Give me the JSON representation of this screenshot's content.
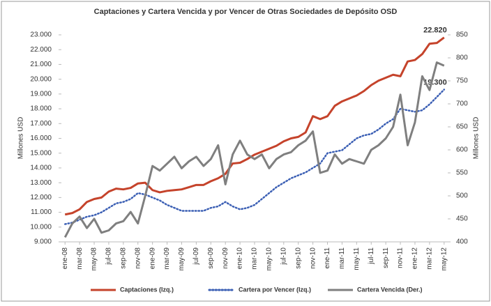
{
  "chart_data": {
    "type": "line",
    "title": "Captaciones y Cartera Vencida y por Vencer de Otras Sociedades de Depósito OSD",
    "ylabel": "Millones USD",
    "y2label": "Millones USD",
    "categories": [
      "ene-08",
      null,
      "mar-08",
      null,
      "may-08",
      null,
      "jul-08",
      null,
      "sep-08",
      null,
      "nov-08",
      null,
      "ene-09",
      null,
      "mar-09",
      null,
      "may-09",
      null,
      "jul-09",
      null,
      "sep-09",
      null,
      "nov-09",
      null,
      "ene-10",
      null,
      "mar-10",
      null,
      "may-10",
      null,
      "jul-10",
      null,
      "sep-10",
      null,
      "nov-10",
      null,
      "ene-11",
      null,
      "mar-11",
      null,
      "may-11",
      null,
      "jul-11",
      null,
      "sep-11",
      null,
      "nov-11",
      null,
      "ene-12",
      null,
      "mar-12",
      null,
      "may-12"
    ],
    "ylim": [
      9000,
      23000
    ],
    "yticks": [
      {
        "value": 9000,
        "label": "9.000"
      },
      {
        "value": 10000,
        "label": "10.000"
      },
      {
        "value": 11000,
        "label": "11.000"
      },
      {
        "value": 12000,
        "label": "12.000"
      },
      {
        "value": 13000,
        "label": "13.000"
      },
      {
        "value": 14000,
        "label": "14.000"
      },
      {
        "value": 15000,
        "label": "15.000"
      },
      {
        "value": 16000,
        "label": "16.000"
      },
      {
        "value": 17000,
        "label": "17.000"
      },
      {
        "value": 18000,
        "label": "18.000"
      },
      {
        "value": 19000,
        "label": "19.000"
      },
      {
        "value": 20000,
        "label": "20.000"
      },
      {
        "value": 21000,
        "label": "21.000"
      },
      {
        "value": 22000,
        "label": "22.000"
      },
      {
        "value": 23000,
        "label": "23.000"
      }
    ],
    "y2lim": [
      400,
      850
    ],
    "y2ticks": [
      400,
      450,
      500,
      550,
      600,
      650,
      700,
      750,
      800,
      850
    ],
    "grid": false,
    "legend": "bottom",
    "series": [
      {
        "name": "Captaciones (Izq.)",
        "color": "#c5432b",
        "style": "solid",
        "values": [
          10850,
          10950,
          11200,
          11700,
          11900,
          12000,
          12400,
          12600,
          12550,
          12650,
          12950,
          13000,
          12500,
          12350,
          12450,
          12500,
          12550,
          12700,
          12850,
          12850,
          13100,
          13300,
          13600,
          14300,
          14350,
          14600,
          14900,
          15100,
          15300,
          15500,
          15800,
          16000,
          16100,
          16400,
          17500,
          17300,
          17500,
          18200,
          18500,
          18700,
          18900,
          19200,
          19600,
          19900,
          20100,
          20300,
          20200,
          21200,
          21300,
          21700,
          22400,
          22450,
          22820
        ],
        "value_labels": [
          null,
          null,
          null,
          null,
          null,
          null,
          null,
          null,
          null,
          null,
          null,
          null,
          null,
          null,
          null,
          null,
          null,
          null,
          null,
          null,
          null,
          null,
          null,
          null,
          null,
          null,
          null,
          null,
          null,
          null,
          null,
          null,
          null,
          null,
          null,
          null,
          null,
          null,
          null,
          null,
          null,
          null,
          null,
          null,
          null,
          null,
          null,
          null,
          null,
          null,
          null,
          null,
          "22.820"
        ]
      },
      {
        "name": "Cartera por Vencer (Izq.)",
        "color": "#3b5fb4",
        "style": "dotted",
        "values": [
          10200,
          10300,
          10500,
          10700,
          10800,
          11000,
          11300,
          11600,
          11700,
          11900,
          12300,
          12200,
          12000,
          11800,
          11500,
          11300,
          11100,
          11100,
          11100,
          11100,
          11300,
          11400,
          11700,
          11400,
          11200,
          11300,
          11500,
          11900,
          12300,
          12700,
          13000,
          13300,
          13500,
          13700,
          14000,
          14300,
          15000,
          15100,
          15200,
          15600,
          16000,
          16200,
          16300,
          16600,
          17000,
          17300,
          18000,
          17900,
          17800,
          17900,
          18300,
          18800,
          19300
        ],
        "value_labels": [
          null,
          null,
          null,
          null,
          null,
          null,
          null,
          null,
          null,
          null,
          null,
          null,
          null,
          null,
          null,
          null,
          null,
          null,
          null,
          null,
          null,
          null,
          null,
          null,
          null,
          null,
          null,
          null,
          null,
          null,
          null,
          null,
          null,
          null,
          null,
          null,
          null,
          null,
          null,
          null,
          null,
          null,
          null,
          null,
          null,
          null,
          null,
          null,
          null,
          null,
          null,
          null,
          "19.300"
        ]
      },
      {
        "name": "Cartera Vencida (Der.)",
        "color": "#7f7f7f",
        "style": "solid",
        "axis": "y2",
        "values": [
          410,
          440,
          455,
          430,
          450,
          420,
          425,
          440,
          445,
          465,
          440,
          500,
          565,
          555,
          570,
          585,
          560,
          575,
          585,
          565,
          580,
          610,
          525,
          590,
          620,
          590,
          580,
          590,
          560,
          580,
          590,
          595,
          610,
          620,
          640,
          550,
          555,
          590,
          570,
          580,
          575,
          570,
          600,
          610,
          625,
          650,
          720,
          610,
          660,
          760,
          730,
          790,
          783
        ]
      }
    ]
  }
}
